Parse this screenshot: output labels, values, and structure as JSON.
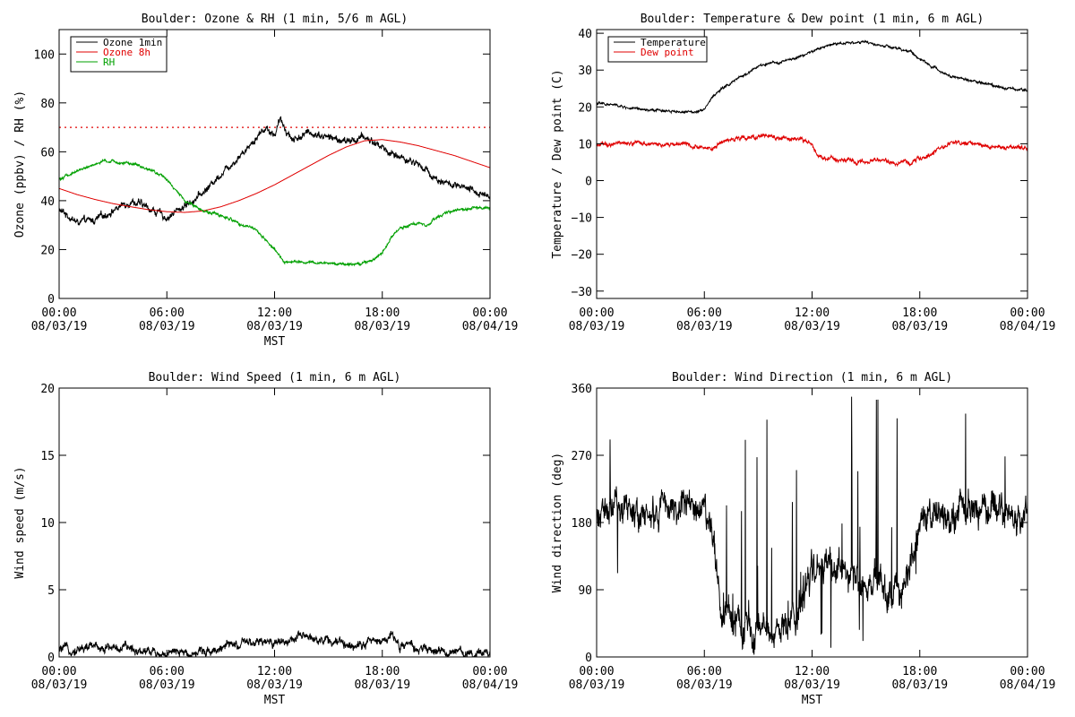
{
  "colors": {
    "background": "#ffffff",
    "axis": "#000000",
    "ozone_1min": "#000000",
    "ozone_8h": "#e00000",
    "rh": "#00a000",
    "temperature": "#000000",
    "dew_point": "#e00000",
    "reference_line": "#e00000"
  },
  "chart_data": [
    {
      "id": "ozone-rh",
      "type": "line",
      "title": "Boulder: Ozone & RH (1 min, 5/6 m AGL)",
      "xlabel": "MST",
      "ylabel": "Ozone (ppbv) / RH (%)",
      "xlim": [
        0,
        24
      ],
      "ylim": [
        0,
        110
      ],
      "x_ticks": [
        0,
        6,
        12,
        18,
        24
      ],
      "x_tick_labels": [
        [
          "00:00",
          "08/03/19"
        ],
        [
          "06:00",
          "08/03/19"
        ],
        [
          "12:00",
          "08/03/19"
        ],
        [
          "18:00",
          "08/03/19"
        ],
        [
          "00:00",
          "08/04/19"
        ]
      ],
      "y_ticks": [
        0,
        20,
        40,
        60,
        80,
        100
      ],
      "y_tick_labels": [
        "0",
        "20",
        "40",
        "60",
        "80",
        "100"
      ],
      "legend_position": "top-left",
      "reference_lines": [
        {
          "y": 70,
          "style": "dotted",
          "color": "#e00000"
        }
      ],
      "series": [
        {
          "name": "Ozone 1min",
          "color": "#000000",
          "noise": 1.5,
          "x": [
            0,
            0.5,
            1,
            2,
            3,
            4,
            5,
            6,
            7,
            8,
            9,
            10,
            11,
            11.5,
            12,
            12.3,
            13,
            14,
            15,
            16,
            17,
            17.5,
            18,
            18.5,
            19,
            20,
            21,
            22,
            23,
            24
          ],
          "y": [
            36,
            34,
            31,
            32,
            36,
            40,
            37,
            33,
            38,
            43,
            51,
            58,
            66,
            70,
            67,
            73,
            65,
            68,
            66,
            64,
            66,
            64,
            62,
            59,
            58,
            55,
            49,
            46,
            44,
            42
          ]
        },
        {
          "name": "Ozone 8h",
          "color": "#e00000",
          "noise": 0,
          "x": [
            0,
            1,
            2,
            3,
            4,
            5,
            6,
            7,
            8,
            9,
            10,
            11,
            12,
            13,
            14,
            15,
            16,
            17,
            18,
            19,
            20,
            21,
            22,
            23,
            24
          ],
          "y": [
            45,
            42.5,
            40.5,
            38.8,
            37.5,
            36.3,
            35.5,
            35.2,
            35.8,
            37.5,
            40,
            43,
            46.5,
            50.5,
            54.5,
            58.5,
            62,
            64.5,
            65,
            64,
            62.5,
            60.5,
            58.5,
            56,
            53.5
          ]
        },
        {
          "name": "RH",
          "color": "#00a000",
          "noise": 0.6,
          "x": [
            0,
            1,
            2,
            2.5,
            3,
            4,
            5,
            6,
            6.5,
            7,
            8,
            9,
            10,
            11,
            12,
            12.5,
            13,
            14,
            15,
            16,
            17,
            17.5,
            18,
            18.5,
            19,
            20,
            20.5,
            21,
            22,
            23,
            24
          ],
          "y": [
            49,
            52,
            55,
            56,
            56,
            55,
            53,
            49,
            44,
            40,
            36,
            34,
            31,
            28,
            20,
            15,
            15,
            14.5,
            14.5,
            14,
            14.5,
            16,
            19,
            25,
            29,
            31,
            30,
            33,
            36,
            37,
            37
          ]
        }
      ]
    },
    {
      "id": "temp-dew",
      "type": "line",
      "title": "Boulder: Temperature & Dew point (1 min, 6 m AGL)",
      "xlabel": "",
      "ylabel": "Temperature / Dew point (C)",
      "xlim": [
        0,
        24
      ],
      "ylim": [
        -32,
        41
      ],
      "x_ticks": [
        0,
        6,
        12,
        18,
        24
      ],
      "x_tick_labels": [
        [
          "00:00",
          "08/03/19"
        ],
        [
          "06:00",
          "08/03/19"
        ],
        [
          "12:00",
          "08/03/19"
        ],
        [
          "18:00",
          "08/03/19"
        ],
        [
          "00:00",
          "08/04/19"
        ]
      ],
      "y_ticks": [
        -30,
        -20,
        -10,
        0,
        10,
        20,
        30,
        40
      ],
      "y_tick_labels": [
        "−30",
        "−20",
        "−10",
        "0",
        "10",
        "20",
        "30",
        "40"
      ],
      "legend_position": "top-left",
      "series": [
        {
          "name": "Temperature",
          "color": "#000000",
          "noise": 0.35,
          "x": [
            0,
            1,
            2,
            3,
            4,
            5,
            5.5,
            6,
            6.5,
            7,
            8,
            9,
            10,
            11,
            12,
            13,
            14,
            15,
            16,
            17,
            17.5,
            18,
            19,
            20,
            21,
            22,
            23,
            24
          ],
          "y": [
            21,
            20.5,
            19.5,
            19,
            19,
            18.5,
            18.8,
            19.5,
            23,
            25,
            28,
            31,
            32,
            33,
            35,
            37,
            37.5,
            37.5,
            36.5,
            35.5,
            35,
            33,
            30,
            28,
            27,
            26,
            25,
            24.5
          ]
        },
        {
          "name": "Dew point",
          "color": "#e00000",
          "noise": 0.6,
          "x": [
            0,
            1,
            2,
            3,
            4,
            5,
            6,
            6.5,
            7,
            8,
            9,
            10,
            11,
            12,
            12.3,
            13,
            14,
            15,
            16,
            17,
            17.5,
            18,
            19,
            20,
            21,
            22,
            23,
            24
          ],
          "y": [
            10,
            10.2,
            10.3,
            10,
            10,
            10,
            9,
            9,
            10.5,
            11.5,
            12,
            11.5,
            11.5,
            10,
            6.5,
            6,
            5.5,
            5,
            5.5,
            4.5,
            4.8,
            6,
            8,
            10.5,
            10,
            9,
            9,
            8.8
          ]
        }
      ]
    },
    {
      "id": "wind-speed",
      "type": "line",
      "title": "Boulder: Wind Speed (1 min, 6 m AGL)",
      "xlabel": "MST",
      "ylabel": "Wind speed (m/s)",
      "xlim": [
        0,
        24
      ],
      "ylim": [
        0,
        20
      ],
      "x_ticks": [
        0,
        6,
        12,
        18,
        24
      ],
      "x_tick_labels": [
        [
          "00:00",
          "08/03/19"
        ],
        [
          "06:00",
          "08/03/19"
        ],
        [
          "12:00",
          "08/03/19"
        ],
        [
          "18:00",
          "08/03/19"
        ],
        [
          "00:00",
          "08/04/19"
        ]
      ],
      "y_ticks": [
        0,
        5,
        10,
        15,
        20
      ],
      "y_tick_labels": [
        "0",
        "5",
        "10",
        "15",
        "20"
      ],
      "series": [
        {
          "name": "",
          "color": "#000000",
          "noise": 0.35,
          "clip_min": 0,
          "x": [
            0,
            1,
            2,
            3,
            4,
            5,
            6,
            7,
            8,
            9,
            10,
            11,
            12,
            13,
            14,
            15,
            16,
            17,
            18,
            18.5,
            19,
            20,
            21,
            22,
            23,
            24
          ],
          "y": [
            0.5,
            0.6,
            0.8,
            0.7,
            0.6,
            0.5,
            0.2,
            0.3,
            0.4,
            0.7,
            0.9,
            1.0,
            1.1,
            1.3,
            1.5,
            1.2,
            0.9,
            1.1,
            1.2,
            1.6,
            0.9,
            0.6,
            0.4,
            0.3,
            0.3,
            0.4
          ]
        }
      ]
    },
    {
      "id": "wind-dir",
      "type": "line",
      "title": "Boulder: Wind Direction (1 min, 6 m AGL)",
      "xlabel": "MST",
      "ylabel": "Wind direction (deg)",
      "xlim": [
        0,
        24
      ],
      "ylim": [
        0,
        360
      ],
      "x_ticks": [
        0,
        6,
        12,
        18,
        24
      ],
      "x_tick_labels": [
        [
          "00:00",
          "08/03/19"
        ],
        [
          "06:00",
          "08/03/19"
        ],
        [
          "12:00",
          "08/03/19"
        ],
        [
          "18:00",
          "08/03/19"
        ],
        [
          "00:00",
          "08/04/19"
        ]
      ],
      "y_ticks": [
        0,
        90,
        180,
        270,
        360
      ],
      "y_tick_labels": [
        "0",
        "90",
        "180",
        "270",
        "360"
      ],
      "series": [
        {
          "name": "",
          "color": "#000000",
          "noise": 22,
          "wrap": 360,
          "burst": true,
          "x": [
            0,
            1,
            2,
            3,
            4,
            5,
            6,
            6.5,
            7,
            8,
            9,
            10,
            11,
            12,
            13,
            14,
            15,
            16,
            17,
            18,
            19,
            20,
            21,
            22,
            23,
            24
          ],
          "y": [
            190,
            195,
            200,
            190,
            195,
            200,
            205,
            150,
            60,
            40,
            30,
            30,
            50,
            120,
            130,
            110,
            100,
            90,
            80,
            180,
            180,
            185,
            200,
            200,
            190,
            190
          ]
        }
      ]
    }
  ]
}
